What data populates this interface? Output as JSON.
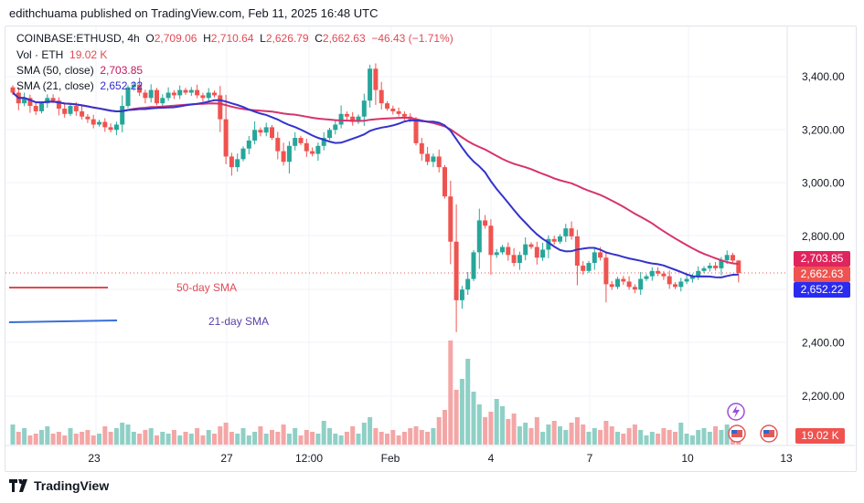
{
  "publisher_line": "edithchuama published on TradingView.com, Feb 11, 2025 16:48 UTC",
  "legend": {
    "symbol": "COINBASE:ETHUSD, 4h",
    "open_label": "O",
    "open": "2,709.06",
    "high_label": "H",
    "high": "2,710.64",
    "low_label": "L",
    "low": "2,626.79",
    "close_label": "C",
    "close": "2,662.63",
    "change": "−46.43 (−1.71%)",
    "vol_label": "Vol · ETH",
    "vol": "19.02 K",
    "sma50_label": "SMA (50, close)",
    "sma50": "2,703.85",
    "sma21_label": "SMA (21, close)",
    "sma21": "2,652.22"
  },
  "annotations": {
    "sma50": "50-day SMA",
    "sma21": "21-day SMA"
  },
  "price_labels": {
    "sma50": "2,703.85",
    "last": "2,662.63",
    "sma21": "2,652.22",
    "volume": "19.02 K"
  },
  "colors": {
    "up": "#26a69a",
    "down": "#ef5350",
    "sma50": "#d6336c",
    "sma21": "#3333cc",
    "sma21_tag": "#2b2bf0",
    "sma50_tag": "#e0245e"
  },
  "watermark": "TradingView",
  "chart_data": {
    "type": "candlestick",
    "y_ticks": [
      "3,400.00",
      "3,200.00",
      "3,000.00",
      "2,800.00",
      "2,400.00",
      "2,200.00"
    ],
    "y_tick_values": [
      3400,
      3200,
      3000,
      2800,
      2400,
      2200
    ],
    "ylim": [
      2130,
      3480
    ],
    "x_ticks": [
      "23",
      "27",
      "12:00",
      "Feb",
      "4",
      "7",
      "10",
      "13"
    ],
    "closes": [
      3340,
      3300,
      3320,
      3290,
      3270,
      3300,
      3320,
      3310,
      3280,
      3260,
      3290,
      3270,
      3250,
      3240,
      3220,
      3230,
      3210,
      3200,
      3220,
      3290,
      3360,
      3370,
      3340,
      3320,
      3350,
      3300,
      3320,
      3340,
      3330,
      3350,
      3340,
      3350,
      3330,
      3320,
      3340,
      3330,
      3240,
      3100,
      3060,
      3090,
      3130,
      3160,
      3200,
      3190,
      3210,
      3170,
      3120,
      3080,
      3140,
      3170,
      3150,
      3120,
      3110,
      3140,
      3170,
      3200,
      3220,
      3260,
      3250,
      3230,
      3250,
      3310,
      3430,
      3350,
      3300,
      3280,
      3270,
      3260,
      3250,
      3240,
      3150,
      3110,
      3080,
      3100,
      3060,
      2950,
      2780,
      2560,
      2600,
      2640,
      2740,
      2860,
      2840,
      2730,
      2740,
      2760,
      2730,
      2700,
      2730,
      2770,
      2760,
      2720,
      2750,
      2790,
      2780,
      2800,
      2830,
      2800,
      2690,
      2670,
      2700,
      2740,
      2720,
      2620,
      2610,
      2640,
      2630,
      2610,
      2600,
      2640,
      2650,
      2670,
      2660,
      2650,
      2620,
      2610,
      2630,
      2640,
      2650,
      2670,
      2680,
      2690,
      2680,
      2710,
      2730,
      2709.06,
      2662.63
    ],
    "last_candle": {
      "open": 2709.06,
      "high": 2710.64,
      "low": 2626.79,
      "close": 2662.63
    },
    "volumes_k": [
      22,
      14,
      18,
      10,
      12,
      16,
      20,
      12,
      14,
      10,
      18,
      12,
      14,
      16,
      10,
      12,
      20,
      14,
      18,
      24,
      22,
      14,
      12,
      16,
      18,
      10,
      14,
      12,
      16,
      10,
      14,
      12,
      18,
      10,
      16,
      12,
      20,
      24,
      14,
      12,
      18,
      10,
      14,
      20,
      12,
      16,
      14,
      22,
      12,
      18,
      10,
      16,
      14,
      12,
      26,
      18,
      12,
      10,
      14,
      20,
      12,
      24,
      30,
      18,
      14,
      12,
      16,
      10,
      14,
      18,
      20,
      16,
      14,
      18,
      30,
      38,
      114,
      60,
      72,
      94,
      58,
      44,
      30,
      36,
      50,
      42,
      28,
      34,
      20,
      24,
      18,
      30,
      14,
      22,
      26,
      20,
      16,
      24,
      30,
      22,
      14,
      18,
      16,
      26,
      20,
      14,
      12,
      18,
      22,
      16,
      10,
      14,
      12,
      18,
      16,
      14,
      24,
      12,
      10,
      16,
      18,
      14,
      20,
      16,
      22,
      18,
      19.02
    ]
  }
}
